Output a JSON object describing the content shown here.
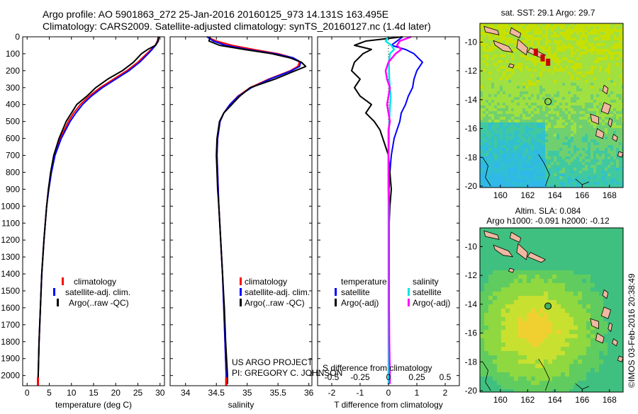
{
  "header": {
    "line1": "Argo profile: AO 5901863_272 25-Jan-2016 20160125_973 14.131S 163.495E",
    "line2": "Climatology: CARS2009. Satellite-adjusted climatology: synTS_20160127.nc (1.4d later)"
  },
  "depth_ticks": [
    "0",
    "100",
    "200",
    "300",
    "400",
    "500",
    "600",
    "700",
    "800",
    "900",
    "1000",
    "1100",
    "1200",
    "1300",
    "1400",
    "1500",
    "1600",
    "1700",
    "1800",
    "1900",
    "2000"
  ],
  "colors": {
    "climatology": "#ff0000",
    "satellite": "#0000ff",
    "argo": "#000000",
    "sal_satellite": "#00e5e5",
    "sal_argo": "#ff00ff"
  },
  "project": {
    "line1": "US ARGO PROJECT",
    "line2": "PI: GREGORY C. JOHNSON"
  },
  "imos_stamp": "©IMOS 03-Feb-2016 20:38:49",
  "chart_data": [
    {
      "type": "line",
      "panel": "temperature",
      "xlabel": "temperature (deg C)",
      "ylabel": "",
      "xlim": [
        -1,
        31
      ],
      "ylim": [
        2060,
        0
      ],
      "xticks": [
        "0",
        "5",
        "10",
        "15",
        "20",
        "25",
        "30"
      ],
      "legend": [
        "climatology",
        "satellite-adj. clim.",
        "Argo(..raw -QC)"
      ],
      "depth": [
        0,
        25,
        50,
        75,
        100,
        150,
        200,
        250,
        300,
        350,
        400,
        450,
        500,
        600,
        700,
        800,
        900,
        1000,
        1200,
        1400,
        1600,
        1800,
        2000,
        2050
      ],
      "series": [
        {
          "name": "climatology",
          "values": [
            29.6,
            29.4,
            28.9,
            28.0,
            27.0,
            25.0,
            22.5,
            19.5,
            16.5,
            14.0,
            12.0,
            10.5,
            9.3,
            7.5,
            6.2,
            5.4,
            4.8,
            4.4,
            3.8,
            3.3,
            3.0,
            2.7,
            2.5,
            2.45
          ]
        },
        {
          "name": "satellite-adj. clim.",
          "values": [
            29.7,
            29.5,
            29.0,
            28.2,
            27.3,
            25.4,
            23.0,
            20.0,
            17.0,
            14.5,
            12.5,
            11.0,
            9.7,
            7.7,
            6.3,
            5.5,
            4.9,
            4.4,
            3.8,
            3.3,
            3.0,
            2.7,
            2.5,
            2.45
          ]
        },
        {
          "name": "Argo(..raw -QC)",
          "values": [
            29.7,
            29.6,
            29.0,
            27.2,
            25.8,
            24.0,
            21.5,
            18.2,
            15.5,
            13.5,
            11.2,
            10.0,
            8.8,
            7.2,
            6.0,
            5.3,
            4.8,
            4.4,
            3.8,
            3.3,
            3.0,
            2.7,
            2.5,
            2.45
          ]
        }
      ]
    },
    {
      "type": "line",
      "panel": "salinity",
      "xlabel": "salinity",
      "ylabel": "",
      "xlim": [
        33.75,
        36.05
      ],
      "ylim": [
        2060,
        0
      ],
      "xticks": [
        "34",
        "34.5",
        "35",
        "35.5",
        "36"
      ],
      "legend": [
        "climatology",
        "satellite-adj. clim.",
        "Argo(..raw -QC)"
      ],
      "depth": [
        0,
        25,
        50,
        75,
        100,
        125,
        150,
        175,
        200,
        250,
        300,
        350,
        400,
        450,
        500,
        600,
        700,
        800,
        900,
        1000,
        1200,
        1400,
        1600,
        1800,
        2000,
        2050
      ],
      "series": [
        {
          "name": "climatology",
          "values": [
            34.35,
            34.5,
            34.75,
            35.1,
            35.5,
            35.75,
            35.85,
            35.82,
            35.7,
            35.35,
            35.05,
            34.85,
            34.72,
            34.62,
            34.56,
            34.52,
            34.51,
            34.52,
            34.53,
            34.54,
            34.57,
            34.6,
            34.62,
            34.64,
            34.66,
            34.66
          ]
        },
        {
          "name": "satellite-adj. clim.",
          "values": [
            34.35,
            34.45,
            34.65,
            35.0,
            35.45,
            35.75,
            35.87,
            35.85,
            35.72,
            35.37,
            35.07,
            34.86,
            34.72,
            34.62,
            34.56,
            34.52,
            34.51,
            34.52,
            34.53,
            34.54,
            34.57,
            34.6,
            34.62,
            34.64,
            34.66,
            34.66
          ]
        },
        {
          "name": "Argo(..raw -QC)",
          "values": [
            34.4,
            34.38,
            34.55,
            34.95,
            35.4,
            35.7,
            35.88,
            35.95,
            35.78,
            35.45,
            35.05,
            34.88,
            34.75,
            34.62,
            34.55,
            34.51,
            34.5,
            34.51,
            34.52,
            34.54,
            34.57,
            34.6,
            34.63,
            34.65,
            34.68,
            34.68
          ]
        }
      ]
    },
    {
      "type": "line",
      "panel": "difference",
      "xlabel": "T difference from climatology",
      "xlabel_top": "S difference from climatology",
      "xlim": [
        -2.5,
        2.5
      ],
      "ylim": [
        2060,
        0
      ],
      "xticks": [
        "-2",
        "-1",
        "0",
        "1",
        "2"
      ],
      "xticks_s": [
        "-0.5",
        "-0.25",
        "0",
        "0.25",
        "0.5"
      ],
      "legend_title_left": "temperature",
      "legend_title_right": "salinity",
      "legend": [
        "satellite",
        "Argo(-adj)",
        "satellite",
        "Argo(-adj)"
      ],
      "depth": [
        0,
        25,
        50,
        75,
        100,
        150,
        200,
        250,
        300,
        350,
        400,
        450,
        500,
        550,
        600,
        700,
        800,
        900,
        1000,
        1200,
        1400,
        1600,
        1800,
        2000,
        2050
      ],
      "series": [
        {
          "name": "satellite",
          "values": [
            0.5,
            0.3,
            0.1,
            0.6,
            0.9,
            1.2,
            1.0,
            0.9,
            0.85,
            0.7,
            0.6,
            0.45,
            0.4,
            0.3,
            0.2,
            0.1,
            0.05,
            0.02,
            0.02,
            0.0,
            0.0,
            0.0,
            0.0,
            0.0,
            0.0
          ]
        },
        {
          "name": "Argo(-adj)",
          "values": [
            0.5,
            -0.8,
            -1.2,
            -0.6,
            -0.9,
            -1.2,
            -1.3,
            -1.0,
            -1.2,
            -1.0,
            -0.6,
            -0.8,
            -0.5,
            -0.3,
            -0.2,
            0.0,
            0.05,
            0.1,
            0.05,
            0.0,
            0.0,
            0.0,
            0.0,
            0.0,
            0.0
          ]
        },
        {
          "name": "satellite",
          "values": [
            0.0,
            -0.1,
            0.1,
            0.2,
            0.05,
            0.02,
            0.02,
            0.03,
            0.05,
            0.08,
            0.06,
            0.04,
            0.03,
            0.02,
            0.02,
            0.0,
            0.0,
            0.0,
            0.0,
            0.0,
            0.0,
            0.0,
            0.0,
            0.0,
            0.0
          ]
        },
        {
          "name": "Argo(-adj)",
          "values": [
            0.8,
            0.4,
            0.3,
            0.45,
            0.25,
            0.0,
            -0.1,
            -0.05,
            0.05,
            0.0,
            -0.05,
            0.0,
            0.05,
            0.0,
            0.0,
            0.0,
            0.0,
            0.0,
            0.02,
            0.02,
            0.02,
            0.02,
            0.03,
            0.05,
            0.05
          ]
        }
      ]
    }
  ],
  "sst_map": {
    "title": "sat. SST: 29.1  Argo: 29.7",
    "xticks": [
      "160",
      "162",
      "164",
      "166",
      "168"
    ],
    "yticks": [
      "-10",
      "-12",
      "-14",
      "-16",
      "-18",
      "-20"
    ],
    "lon_range": [
      158.5,
      169.0
    ],
    "lat_range": [
      -20.1,
      -8.7
    ],
    "argo_lon": 163.495,
    "argo_lat": -14.131
  },
  "sla_map": {
    "title1": "Altim. SLA: 0.084",
    "title2": "Argo h1000: -0.091 h2000: -0.12",
    "xticks": [
      "160",
      "162",
      "164",
      "166",
      "168"
    ],
    "yticks": [
      "-10",
      "-12",
      "-14",
      "-16",
      "-18",
      "-20"
    ],
    "lon_range": [
      158.5,
      169.0
    ],
    "lat_range": [
      -20.1,
      -8.7
    ],
    "argo_lon": 163.495,
    "argo_lat": -14.131
  }
}
